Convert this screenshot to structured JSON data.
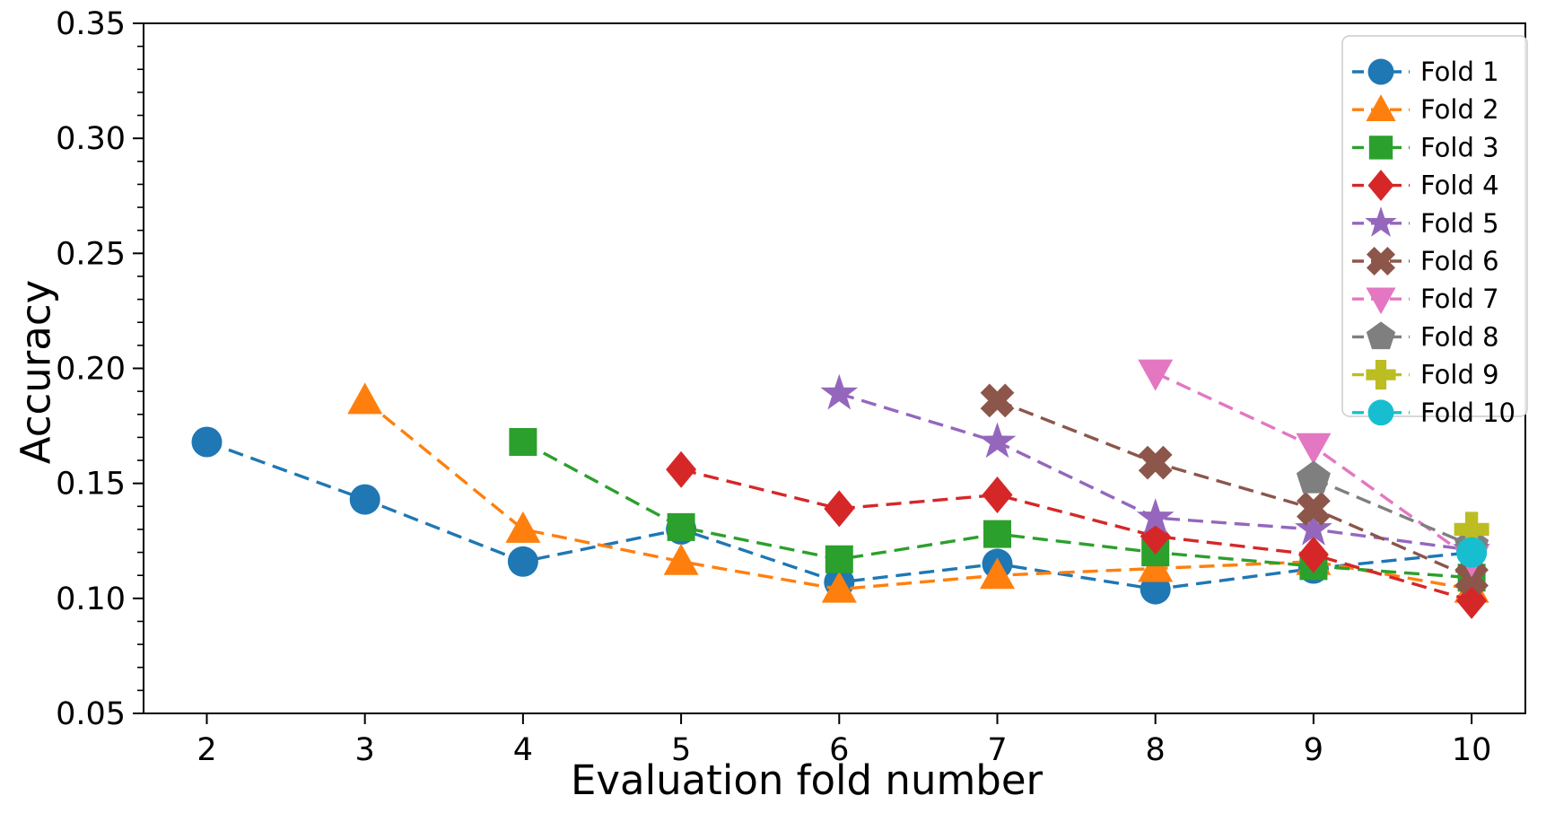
{
  "figure": {
    "background": "#ffffff"
  },
  "chart_data": {
    "type": "line",
    "title": "",
    "xlabel": "Evaluation fold number",
    "ylabel": "Accuracy",
    "line_style": "dashed",
    "grid": false,
    "legend_position": "upper right",
    "xlim": [
      1.6,
      10.34
    ],
    "ylim": [
      0.05,
      0.35
    ],
    "x_ticks": [
      2,
      3,
      4,
      5,
      6,
      7,
      8,
      9,
      10
    ],
    "x_tick_labels": [
      "2",
      "3",
      "4",
      "5",
      "6",
      "7",
      "8",
      "9",
      "10"
    ],
    "y_ticks": [
      0.05,
      0.1,
      0.15,
      0.2,
      0.25,
      0.3,
      0.35
    ],
    "y_tick_labels": [
      "0.05",
      "0.10",
      "0.15",
      "0.20",
      "0.25",
      "0.30",
      "0.35"
    ],
    "y_minor_tick_step": 0.01,
    "series": [
      {
        "name": "Fold 1",
        "color": "#1f77b4",
        "marker": "circle",
        "points": [
          [
            2,
            0.168
          ],
          [
            3,
            0.143
          ],
          [
            4,
            0.116
          ],
          [
            5,
            0.13
          ],
          [
            6,
            0.107
          ],
          [
            7,
            0.115
          ],
          [
            8,
            0.104
          ],
          [
            9,
            0.113
          ],
          [
            10,
            0.12
          ]
        ]
      },
      {
        "name": "Fold 2",
        "color": "#ff7f0e",
        "marker": "triangle_up",
        "points": [
          [
            3,
            0.186
          ],
          [
            4,
            0.13
          ],
          [
            5,
            0.116
          ],
          [
            6,
            0.104
          ],
          [
            7,
            0.11
          ],
          [
            8,
            0.113
          ],
          [
            9,
            0.116
          ],
          [
            10,
            0.104
          ]
        ]
      },
      {
        "name": "Fold 3",
        "color": "#2ca02c",
        "marker": "square",
        "points": [
          [
            4,
            0.168
          ],
          [
            5,
            0.131
          ],
          [
            6,
            0.117
          ],
          [
            7,
            0.128
          ],
          [
            8,
            0.12
          ],
          [
            9,
            0.114
          ],
          [
            10,
            0.109
          ]
        ]
      },
      {
        "name": "Fold 4",
        "color": "#d62728",
        "marker": "diamond",
        "points": [
          [
            5,
            0.156
          ],
          [
            6,
            0.139
          ],
          [
            7,
            0.145
          ],
          [
            8,
            0.127
          ],
          [
            9,
            0.119
          ],
          [
            10,
            0.099
          ]
        ]
      },
      {
        "name": "Fold 5",
        "color": "#9467bd",
        "marker": "star",
        "points": [
          [
            6,
            0.189
          ],
          [
            7,
            0.168
          ],
          [
            8,
            0.135
          ],
          [
            9,
            0.13
          ],
          [
            10,
            0.121
          ]
        ]
      },
      {
        "name": "Fold 6",
        "color": "#8c564b",
        "marker": "x_filled",
        "points": [
          [
            7,
            0.186
          ],
          [
            8,
            0.159
          ],
          [
            9,
            0.139
          ],
          [
            10,
            0.109
          ]
        ]
      },
      {
        "name": "Fold 7",
        "color": "#e377c2",
        "marker": "triangle_down",
        "points": [
          [
            8,
            0.198
          ],
          [
            9,
            0.166
          ],
          [
            10,
            0.117
          ]
        ]
      },
      {
        "name": "Fold 8",
        "color": "#7f7f7f",
        "marker": "pentagon",
        "points": [
          [
            9,
            0.152
          ],
          [
            10,
            0.123
          ]
        ]
      },
      {
        "name": "Fold 9",
        "color": "#bcbd22",
        "marker": "plus_filled",
        "points": [
          [
            10,
            0.13
          ]
        ]
      },
      {
        "name": "Fold 10",
        "color": "#17becf",
        "marker": "circle",
        "points": [
          [
            10,
            0.12
          ]
        ]
      }
    ]
  }
}
